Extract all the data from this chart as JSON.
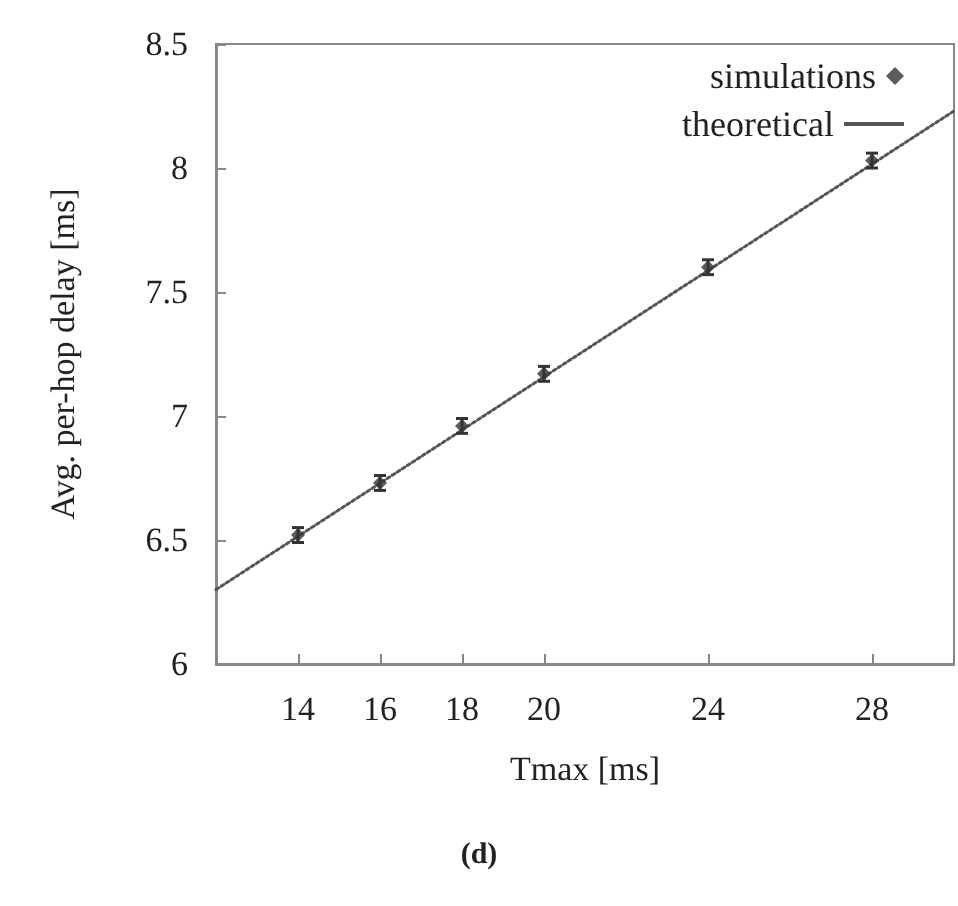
{
  "chart_data": {
    "type": "scatter",
    "xlabel": "Tmax [ms]",
    "ylabel": "Avg. per-hop delay [ms]",
    "annotations": [
      "(d)"
    ],
    "xlim": [
      12,
      30
    ],
    "xticks": [
      14,
      16,
      18,
      20,
      24,
      28
    ],
    "ylim": [
      6,
      8.5
    ],
    "yticks": [
      6,
      6.5,
      7,
      7.5,
      8,
      8.5
    ],
    "grid": false,
    "legend": "top right",
    "series": [
      {
        "name": "simulations",
        "marker": "diamond",
        "color": "#333333",
        "x": [
          14,
          16,
          18,
          20,
          24,
          28
        ],
        "values": [
          6.52,
          6.73,
          6.96,
          7.17,
          7.6,
          8.03
        ],
        "errors": [
          0.03,
          0.03,
          0.03,
          0.03,
          0.03,
          0.03
        ]
      },
      {
        "name": "theoretical",
        "type": "line",
        "marker": "none",
        "color": "#555555",
        "line_style": "dotted",
        "x": [
          12,
          30
        ],
        "values": [
          6.3,
          8.23
        ]
      }
    ]
  }
}
